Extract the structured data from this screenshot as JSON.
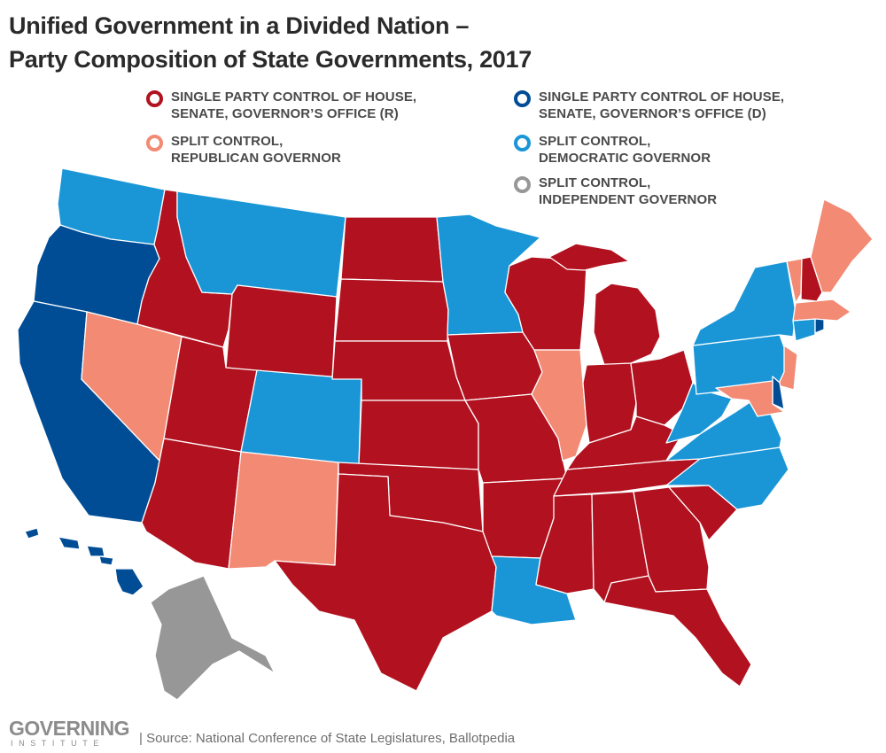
{
  "title": {
    "line1": "Unified Government in a Divided Nation –",
    "line2": "Party Composition of State Governments, 2017"
  },
  "colors": {
    "R": "#b2111f",
    "SR": "#f38a74",
    "D": "#004d96",
    "SD": "#1a96d7",
    "I": "#979797"
  },
  "legend": [
    {
      "key": "R",
      "line1": "SINGLE PARTY CONTROL OF HOUSE,",
      "line2": "SENATE, GOVERNOR’S OFFICE (R)"
    },
    {
      "key": "D",
      "line1": "SINGLE PARTY CONTROL OF HOUSE,",
      "line2": "SENATE, GOVERNOR’S OFFICE (D)"
    },
    {
      "key": "SR",
      "line1": "SPLIT CONTROL,",
      "line2": "REPUBLICAN GOVERNOR"
    },
    {
      "key": "SD",
      "line1": "SPLIT CONTROL,",
      "line2": "DEMOCRATIC GOVERNOR"
    },
    {
      "key": "I",
      "line1": "SPLIT CONTROL,",
      "line2": "INDEPENDENT GOVERNOR"
    }
  ],
  "states": {
    "WA": "SD",
    "OR": "D",
    "CA": "D",
    "ID": "R",
    "NV": "SR",
    "MT": "SD",
    "WY": "R",
    "UT": "R",
    "AZ": "R",
    "CO": "SD",
    "NM": "SR",
    "ND": "R",
    "SD": "R",
    "NE": "R",
    "KS": "R",
    "OK": "R",
    "TX": "R",
    "MN": "SD",
    "IA": "R",
    "MO": "R",
    "AR": "R",
    "LA": "SD",
    "WI": "R",
    "IL": "SR",
    "MI": "R",
    "IN": "R",
    "OH": "R",
    "KY": "R",
    "TN": "R",
    "MS": "R",
    "AL": "R",
    "GA": "R",
    "FL": "R",
    "SC": "R",
    "NC": "SD",
    "VA": "SD",
    "WV": "SD",
    "PA": "SD",
    "NY": "SD",
    "NJ": "SR",
    "DE": "D",
    "MD": "SR",
    "CT": "SD",
    "RI": "D",
    "MA": "SR",
    "VT": "SR",
    "NH": "R",
    "ME": "SR",
    "AK": "I",
    "HI": "D"
  },
  "footer": {
    "logo_word": "GOVERNING",
    "logo_sub": "INSTITUTE",
    "source": "| Source: National Conference of State Legislatures, Ballotpedia"
  }
}
